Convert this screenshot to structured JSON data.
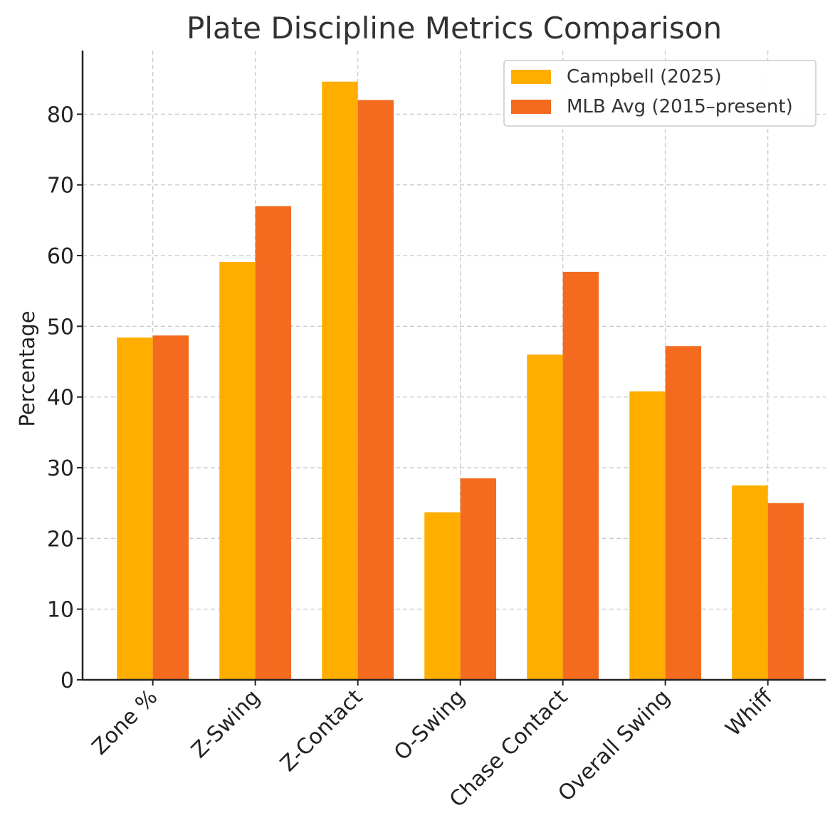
{
  "chart_data": {
    "type": "bar",
    "title": "Plate Discipline Metrics Comparison",
    "xlabel": "",
    "ylabel": "Percentage",
    "ylim": [
      0,
      89
    ],
    "yticks": [
      0,
      10,
      20,
      30,
      40,
      50,
      60,
      70,
      80
    ],
    "grid": true,
    "legend_position": "top-right",
    "categories": [
      "Zone %",
      "Z-Swing",
      "Z-Contact",
      "O-Swing",
      "Chase Contact",
      "Overall Swing",
      "Whiff"
    ],
    "series": [
      {
        "name": "Campbell (2025)",
        "color": "#FFAE00",
        "values": [
          48.4,
          59.1,
          84.6,
          23.7,
          46.0,
          40.8,
          27.5
        ]
      },
      {
        "name": "MLB Avg (2015–present)",
        "color": "#F46B20",
        "values": [
          48.7,
          67.0,
          82.0,
          28.5,
          57.7,
          47.2,
          25.0
        ]
      }
    ]
  }
}
